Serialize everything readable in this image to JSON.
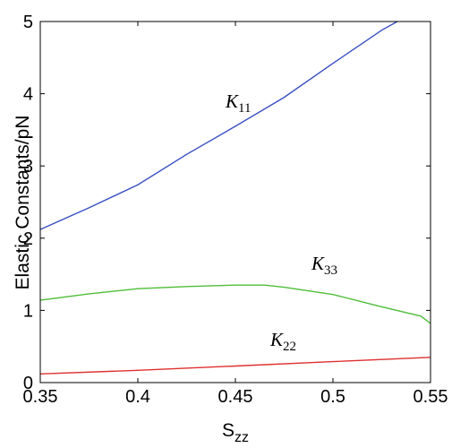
{
  "chart_data": {
    "type": "line",
    "xlabel": "S",
    "xlabel_sub": "zz",
    "ylabel": "Elastic Constants/pN",
    "xlim": [
      0.35,
      0.55
    ],
    "ylim": [
      0,
      5
    ],
    "xticks": [
      "0.35",
      "0.4",
      "0.45",
      "0.5",
      "0.55"
    ],
    "yticks": [
      "0",
      "1",
      "2",
      "3",
      "4",
      "5"
    ],
    "grid": false,
    "series": [
      {
        "name": "K",
        "sub": "11",
        "color": "#3a4fc0",
        "x": [
          0.35,
          0.375,
          0.4,
          0.425,
          0.45,
          0.475,
          0.5,
          0.525,
          0.533
        ],
        "y": [
          2.12,
          2.42,
          2.74,
          3.16,
          3.55,
          3.95,
          4.42,
          4.88,
          5.0
        ]
      },
      {
        "name": "K",
        "sub": "33",
        "color": "#4fbd3a",
        "x": [
          0.35,
          0.375,
          0.4,
          0.425,
          0.45,
          0.465,
          0.475,
          0.5,
          0.525,
          0.545,
          0.55
        ],
        "y": [
          1.14,
          1.23,
          1.3,
          1.33,
          1.35,
          1.35,
          1.32,
          1.22,
          1.05,
          0.92,
          0.82
        ]
      },
      {
        "name": "K",
        "sub": "22",
        "color": "#e03030",
        "x": [
          0.35,
          0.4,
          0.45,
          0.5,
          0.55
        ],
        "y": [
          0.12,
          0.17,
          0.23,
          0.29,
          0.35
        ]
      }
    ]
  }
}
